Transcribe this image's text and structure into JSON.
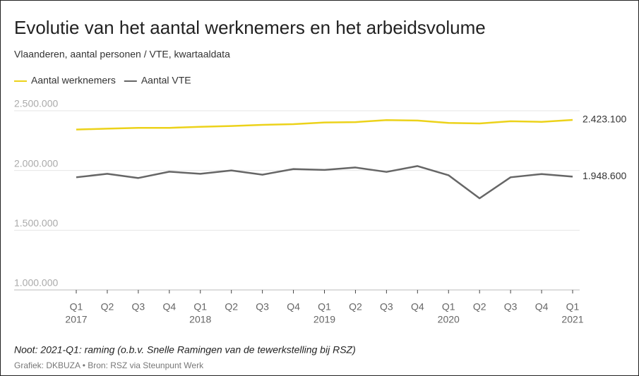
{
  "chart_data": {
    "type": "line",
    "title": "Evolutie van het aantal werknemers en het arbeidsvolume",
    "subtitle": "Vlaanderen, aantal personen / VTE, kwartaaldata",
    "note": "Noot: 2021-Q1: raming (o.b.v. Snelle Ramingen van de tewerkstelling bij RSZ)",
    "source": "Grafiek: DKBUZA • Bron: RSZ via Steunpunt Werk",
    "categories": [
      "Q1",
      "Q2",
      "Q3",
      "Q4",
      "Q1",
      "Q2",
      "Q3",
      "Q4",
      "Q1",
      "Q2",
      "Q3",
      "Q4",
      "Q1",
      "Q2",
      "Q3",
      "Q4",
      "Q1"
    ],
    "category_years": [
      "2017",
      null,
      null,
      null,
      "2018",
      null,
      null,
      null,
      "2019",
      null,
      null,
      null,
      "2020",
      null,
      null,
      null,
      "2021"
    ],
    "series": [
      {
        "name": "Aantal werknemers",
        "color": "#ecd21a",
        "values": [
          2343000,
          2350000,
          2357000,
          2357000,
          2366000,
          2372000,
          2382000,
          2388000,
          2402000,
          2405000,
          2422000,
          2418000,
          2398000,
          2394000,
          2412000,
          2407000,
          2423100
        ],
        "value_labels": [
          null,
          null,
          null,
          null,
          null,
          null,
          null,
          null,
          null,
          null,
          null,
          null,
          null,
          null,
          null,
          null,
          "2.423.100"
        ]
      },
      {
        "name": "Aantal VTE",
        "color": "#666666",
        "values": [
          1943000,
          1972000,
          1937000,
          1990000,
          1972000,
          2000000,
          1965000,
          2012000,
          2005000,
          2025000,
          1988000,
          2037000,
          1960000,
          1767000,
          1943000,
          1970000,
          1948600
        ],
        "value_labels": [
          null,
          null,
          null,
          null,
          null,
          null,
          null,
          null,
          null,
          null,
          null,
          null,
          null,
          null,
          null,
          null,
          "1.948.600"
        ]
      }
    ],
    "ylim": [
      1000000,
      2500000
    ],
    "yticks": [
      {
        "value": 1000000,
        "label": "1.000.000"
      },
      {
        "value": 1500000,
        "label": "1.500.000"
      },
      {
        "value": 2000000,
        "label": "2.000.000"
      },
      {
        "value": 2500000,
        "label": "2.500.000"
      }
    ],
    "grid": true
  }
}
